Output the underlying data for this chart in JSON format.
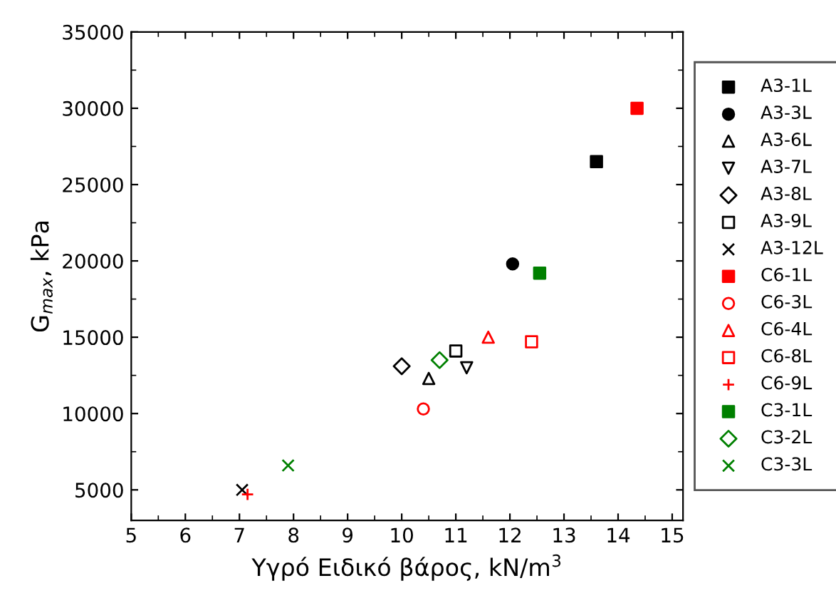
{
  "chart_data": {
    "type": "scatter",
    "xlabel": "Υγρό Ειδικό βάρος, kN/m$^{3}$",
    "ylabel": "G$_{max}$, kPa",
    "xlim": [
      5,
      15.2
    ],
    "ylim": [
      3000,
      35000
    ],
    "xticks": [
      5,
      6,
      7,
      8,
      9,
      10,
      11,
      12,
      13,
      14,
      15
    ],
    "yticks": [
      5000,
      10000,
      15000,
      20000,
      25000,
      30000,
      35000
    ],
    "grid": false,
    "legend": "right",
    "series": [
      {
        "name": "A3-1L",
        "color": "#000000",
        "marker": "square_filled",
        "x": [
          13.6
        ],
        "values": [
          26500
        ]
      },
      {
        "name": "A3-3L",
        "color": "#000000",
        "marker": "circle_filled",
        "x": [
          12.05
        ],
        "values": [
          19800
        ]
      },
      {
        "name": "A3-6L",
        "color": "#000000",
        "marker": "triangle",
        "x": [
          10.5
        ],
        "values": [
          12300
        ]
      },
      {
        "name": "A3-7L",
        "color": "#000000",
        "marker": "triangle_down",
        "x": [
          11.2
        ],
        "values": [
          13000
        ]
      },
      {
        "name": "A3-8L",
        "color": "#000000",
        "marker": "diamond",
        "x": [
          10.0
        ],
        "values": [
          13100
        ]
      },
      {
        "name": "A3-9L",
        "color": "#000000",
        "marker": "square",
        "x": [
          11.0
        ],
        "values": [
          14100
        ]
      },
      {
        "name": "A3-12L",
        "color": "#000000",
        "marker": "cross",
        "x": [
          7.05
        ],
        "values": [
          5000
        ]
      },
      {
        "name": "C6-1L",
        "color": "#ff0000",
        "marker": "square_filled",
        "x": [
          14.35
        ],
        "values": [
          30000
        ]
      },
      {
        "name": "C6-3L",
        "color": "#ff0000",
        "marker": "circle",
        "x": [
          10.4
        ],
        "values": [
          10300
        ]
      },
      {
        "name": "C6-4L",
        "color": "#ff0000",
        "marker": "triangle",
        "x": [
          11.6
        ],
        "values": [
          15000
        ]
      },
      {
        "name": "C6-8L",
        "color": "#ff0000",
        "marker": "square",
        "x": [
          12.4
        ],
        "values": [
          14700
        ]
      },
      {
        "name": "C6-9L",
        "color": "#ff0000",
        "marker": "plus",
        "x": [
          7.15
        ],
        "values": [
          4700
        ]
      },
      {
        "name": "C3-1L",
        "color": "#008000",
        "marker": "square_filled",
        "x": [
          12.55
        ],
        "values": [
          19200
        ]
      },
      {
        "name": "C3-2L",
        "color": "#008000",
        "marker": "diamond",
        "x": [
          10.7
        ],
        "values": [
          13500
        ]
      },
      {
        "name": "C3-3L",
        "color": "#008000",
        "marker": "cross",
        "x": [
          7.9
        ],
        "values": [
          6600
        ]
      }
    ]
  }
}
